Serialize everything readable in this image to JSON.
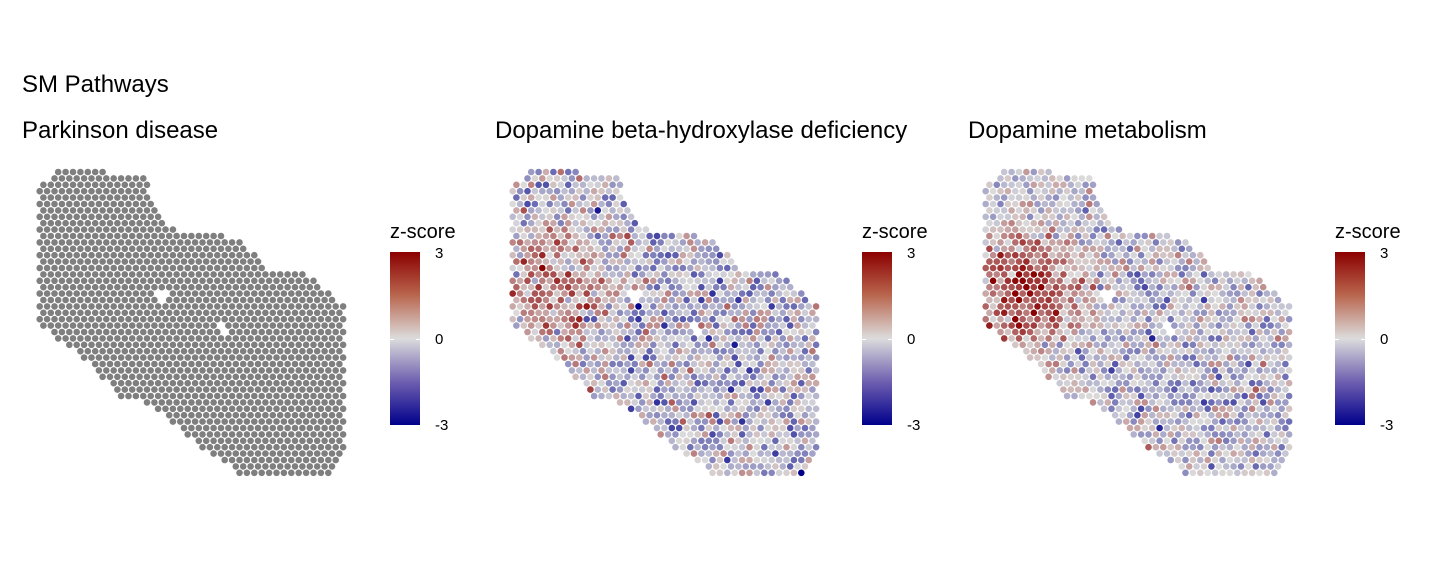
{
  "figure": {
    "title": "SM Pathways"
  },
  "legend": {
    "title": "z-score",
    "max_label": "3",
    "mid_label": "0",
    "min_label": "-3"
  },
  "colors": {
    "high": "#8b0000",
    "mid": "#dcdcdc",
    "low": "#00008b",
    "na": "#7f7f7f"
  },
  "chart_data": [
    {
      "type": "heatmap",
      "title": "Parkinson disease",
      "fill": "#7f7f7f",
      "color_scale": {
        "label": "z-score",
        "limits": [
          -3,
          3
        ],
        "breaks": [
          -3,
          0,
          3
        ]
      },
      "hotspot": null
    },
    {
      "type": "heatmap",
      "title": "Dopamine beta-hydroxylase deficiency",
      "color_scale": {
        "label": "z-score",
        "limits": [
          -3,
          3
        ],
        "breaks": [
          -3,
          0,
          3
        ]
      },
      "hotspot": "upper-left, moderate"
    },
    {
      "type": "heatmap",
      "title": "Dopamine metabolism",
      "color_scale": {
        "label": "z-score",
        "limits": [
          -3,
          3
        ],
        "breaks": [
          -3,
          0,
          3
        ]
      },
      "hotspot": "upper-left, strong"
    }
  ]
}
